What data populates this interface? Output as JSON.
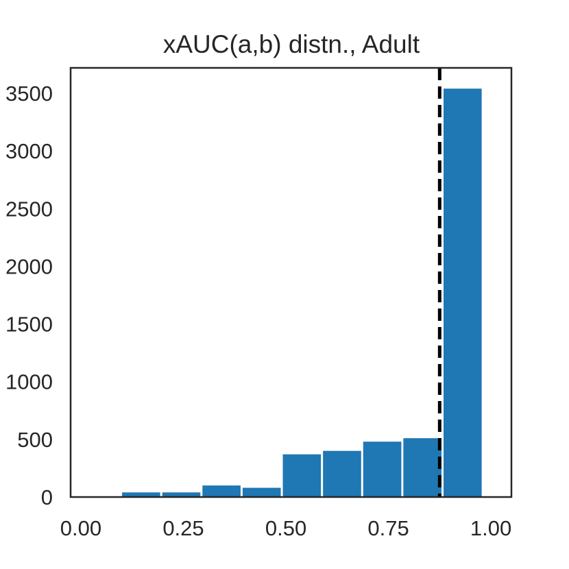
{
  "chart_data": {
    "type": "bar",
    "title": "xAUC(a,b) distn., Adult",
    "xlabel": "",
    "ylabel": "",
    "xlim": [
      -0.025,
      1.05
    ],
    "ylim": [
      0,
      3720
    ],
    "x_ticks": [
      "0.00",
      "0.25",
      "0.50",
      "0.75",
      "1.00"
    ],
    "x_tick_values": [
      0.0,
      0.25,
      0.5,
      0.75,
      1.0
    ],
    "y_ticks": [
      "0",
      "500",
      "1000",
      "1500",
      "2000",
      "2500",
      "3000",
      "3500"
    ],
    "y_tick_values": [
      0,
      500,
      1000,
      1500,
      2000,
      2500,
      3000,
      3500
    ],
    "bins": [
      {
        "x0": 0.0,
        "x1": 0.098,
        "value": 0
      },
      {
        "x0": 0.098,
        "x1": 0.196,
        "value": 40
      },
      {
        "x0": 0.196,
        "x1": 0.294,
        "value": 40
      },
      {
        "x0": 0.294,
        "x1": 0.392,
        "value": 100
      },
      {
        "x0": 0.392,
        "x1": 0.49,
        "value": 80
      },
      {
        "x0": 0.49,
        "x1": 0.588,
        "value": 370
      },
      {
        "x0": 0.588,
        "x1": 0.686,
        "value": 400
      },
      {
        "x0": 0.686,
        "x1": 0.784,
        "value": 480
      },
      {
        "x0": 0.784,
        "x1": 0.882,
        "value": 510
      },
      {
        "x0": 0.882,
        "x1": 0.98,
        "value": 3540
      }
    ],
    "reference_line": {
      "x": 0.875,
      "style": "dashed",
      "color": "#000000"
    },
    "bar_color": "#1f77b4",
    "grid": false
  }
}
